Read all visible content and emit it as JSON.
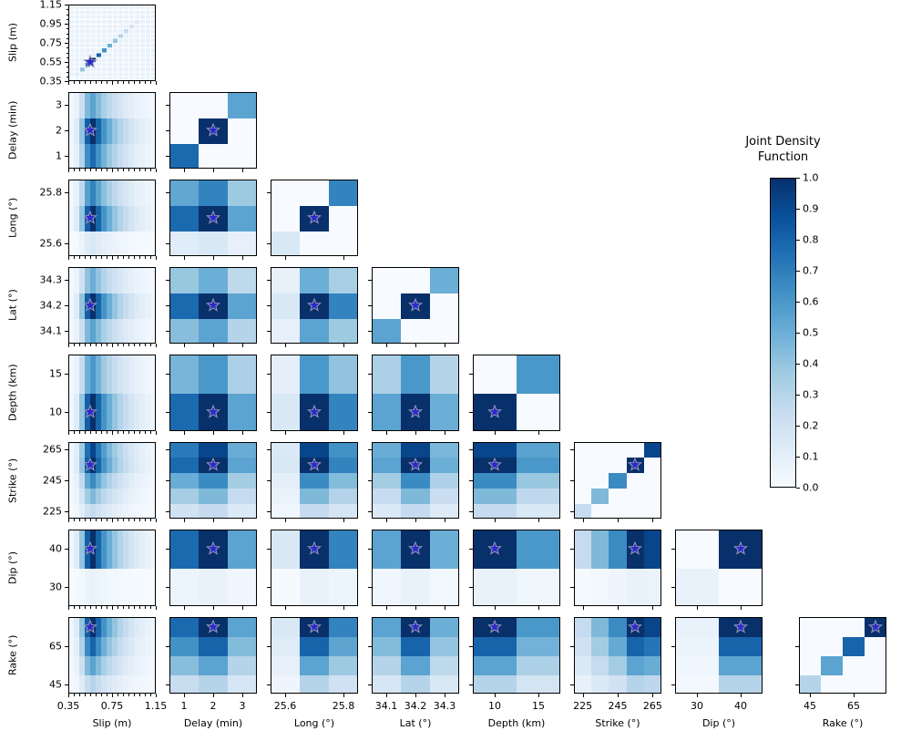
{
  "figure": {
    "background": "#ffffff"
  },
  "chart_data": {
    "type": "heatmap",
    "subtype": "corner_plot_pairwise_joint_density",
    "layout": "lower_triangular_matrix_8_parameters",
    "colorbar": {
      "title_line1": "Joint Density",
      "title_line2": "Function",
      "vmin": 0.0,
      "vmax": 1.0,
      "tick_labels": [
        "0.0",
        "0.1",
        "0.2",
        "0.3",
        "0.4",
        "0.5",
        "0.6",
        "0.7",
        "0.8",
        "0.9",
        "1.0"
      ],
      "colormap": "Blues",
      "position": "right"
    },
    "colormap_anchors": [
      {
        "t": 0.0,
        "color": "#f7fbff"
      },
      {
        "t": 0.125,
        "color": "#deebf7"
      },
      {
        "t": 0.25,
        "color": "#c6dbef"
      },
      {
        "t": 0.375,
        "color": "#9ecae1"
      },
      {
        "t": 0.5,
        "color": "#6baed6"
      },
      {
        "t": 0.625,
        "color": "#4292c6"
      },
      {
        "t": 0.75,
        "color": "#2171b5"
      },
      {
        "t": 0.875,
        "color": "#08519c"
      },
      {
        "t": 1.0,
        "color": "#08306b"
      }
    ],
    "star_marker": {
      "meaning": "reference (true) value in every panel",
      "fill": "#2a2acc",
      "edge": "#9a9ab4"
    },
    "panel_rule": {
      "diagonal_panels": "cell(i,i) = marginal_density[i]; all other cells = diag_background",
      "off_diagonal_panels": "cell(i,j) = row_param.marginal_density[i] * col_param.marginal_density[j]"
    },
    "parameters": [
      {
        "name": "slip",
        "axis_label": "Slip (m)",
        "axis_min": 0.35,
        "axis_max": 1.15,
        "n_bins": 16,
        "minor_tick_step": 0.05,
        "ticks_x": [
          {
            "value": 0.35,
            "label": "0.35"
          },
          {
            "value": 0.75,
            "label": "0.75"
          },
          {
            "value": 1.15,
            "label": "1.15"
          }
        ],
        "ticks_y": [
          {
            "value": 0.35,
            "label": "0.35"
          },
          {
            "value": 0.55,
            "label": "0.55"
          },
          {
            "value": 0.75,
            "label": "0.75"
          },
          {
            "value": 0.95,
            "label": "0.95"
          },
          {
            "value": 1.15,
            "label": "1.15"
          }
        ],
        "marginal_density": [
          0.04,
          0.12,
          0.4,
          0.82,
          1.0,
          0.8,
          0.62,
          0.5,
          0.4,
          0.31,
          0.24,
          0.18,
          0.13,
          0.1,
          0.07,
          0.05
        ],
        "true_value": 0.55,
        "diag_background": 0.07
      },
      {
        "name": "delay",
        "axis_label": "Delay (min)",
        "values": [
          1,
          2,
          3
        ],
        "ticks_x": [
          {
            "value": 1,
            "label": "1"
          },
          {
            "value": 2,
            "label": "2"
          },
          {
            "value": 3,
            "label": "3"
          }
        ],
        "ticks_y": [
          {
            "value": 1,
            "label": "1"
          },
          {
            "value": 2,
            "label": "2"
          },
          {
            "value": 3,
            "label": "3"
          }
        ],
        "marginal_density": [
          0.78,
          1.0,
          0.55
        ],
        "true_value": 2,
        "diag_background": 0
      },
      {
        "name": "long",
        "axis_label": "Long (°)",
        "values": [
          25.6,
          25.7,
          25.8
        ],
        "ticks_x": [
          {
            "value": 25.6,
            "label": "25.6"
          },
          {
            "value": 25.8,
            "label": "25.8"
          }
        ],
        "ticks_y": [
          {
            "value": 25.6,
            "label": "25.6"
          },
          {
            "value": 25.8,
            "label": "25.8"
          }
        ],
        "marginal_density": [
          0.15,
          1.0,
          0.68
        ],
        "true_value": 25.7,
        "diag_background": 0
      },
      {
        "name": "lat",
        "axis_label": "Lat (°)",
        "values": [
          34.1,
          34.2,
          34.3
        ],
        "ticks_x": [
          {
            "value": 34.1,
            "label": "34.1"
          },
          {
            "value": 34.2,
            "label": "34.2"
          },
          {
            "value": 34.3,
            "label": "34.3"
          }
        ],
        "ticks_y": [
          {
            "value": 34.1,
            "label": "34.1"
          },
          {
            "value": 34.2,
            "label": "34.2"
          },
          {
            "value": 34.3,
            "label": "34.3"
          }
        ],
        "marginal_density": [
          0.55,
          1.0,
          0.5
        ],
        "true_value": 34.2,
        "diag_background": 0
      },
      {
        "name": "depth",
        "axis_label": "Depth (km)",
        "values": [
          10,
          15
        ],
        "ticks_x": [
          {
            "value": 10,
            "label": "10"
          },
          {
            "value": 15,
            "label": "15"
          }
        ],
        "ticks_y": [
          {
            "value": 10,
            "label": "10"
          },
          {
            "value": 15,
            "label": "15"
          }
        ],
        "marginal_density": [
          1.0,
          0.6
        ],
        "true_value": 10,
        "diag_background": 0
      },
      {
        "name": "strike",
        "axis_label": "Strike (°)",
        "values": [
          225,
          235,
          245,
          255,
          265
        ],
        "ticks_x": [
          {
            "value": 225,
            "label": "225"
          },
          {
            "value": 245,
            "label": "245"
          },
          {
            "value": 265,
            "label": "265"
          }
        ],
        "ticks_y": [
          {
            "value": 225,
            "label": "225"
          },
          {
            "value": 245,
            "label": "245"
          },
          {
            "value": 265,
            "label": "265"
          }
        ],
        "marginal_density": [
          0.25,
          0.45,
          0.65,
          1.0,
          0.92
        ],
        "true_value": 255,
        "diag_background": 0
      },
      {
        "name": "dip",
        "axis_label": "Dip (°)",
        "values": [
          30,
          40
        ],
        "ticks_x": [
          {
            "value": 30,
            "label": "30"
          },
          {
            "value": 40,
            "label": "40"
          }
        ],
        "ticks_y": [
          {
            "value": 30,
            "label": "30"
          },
          {
            "value": 40,
            "label": "40"
          }
        ],
        "marginal_density": [
          0.07,
          1.0
        ],
        "true_value": 40,
        "diag_background": 0
      },
      {
        "name": "rake",
        "axis_label": "Rake (°)",
        "values": [
          45,
          55,
          65,
          75
        ],
        "ticks_x": [
          {
            "value": 45,
            "label": "45"
          },
          {
            "value": 65,
            "label": "65"
          }
        ],
        "ticks_y": [
          {
            "value": 45,
            "label": "45"
          },
          {
            "value": 65,
            "label": "65"
          }
        ],
        "marginal_density": [
          0.3,
          0.55,
          0.8,
          1.0
        ],
        "true_value": 75,
        "diag_background": 0
      }
    ]
  }
}
